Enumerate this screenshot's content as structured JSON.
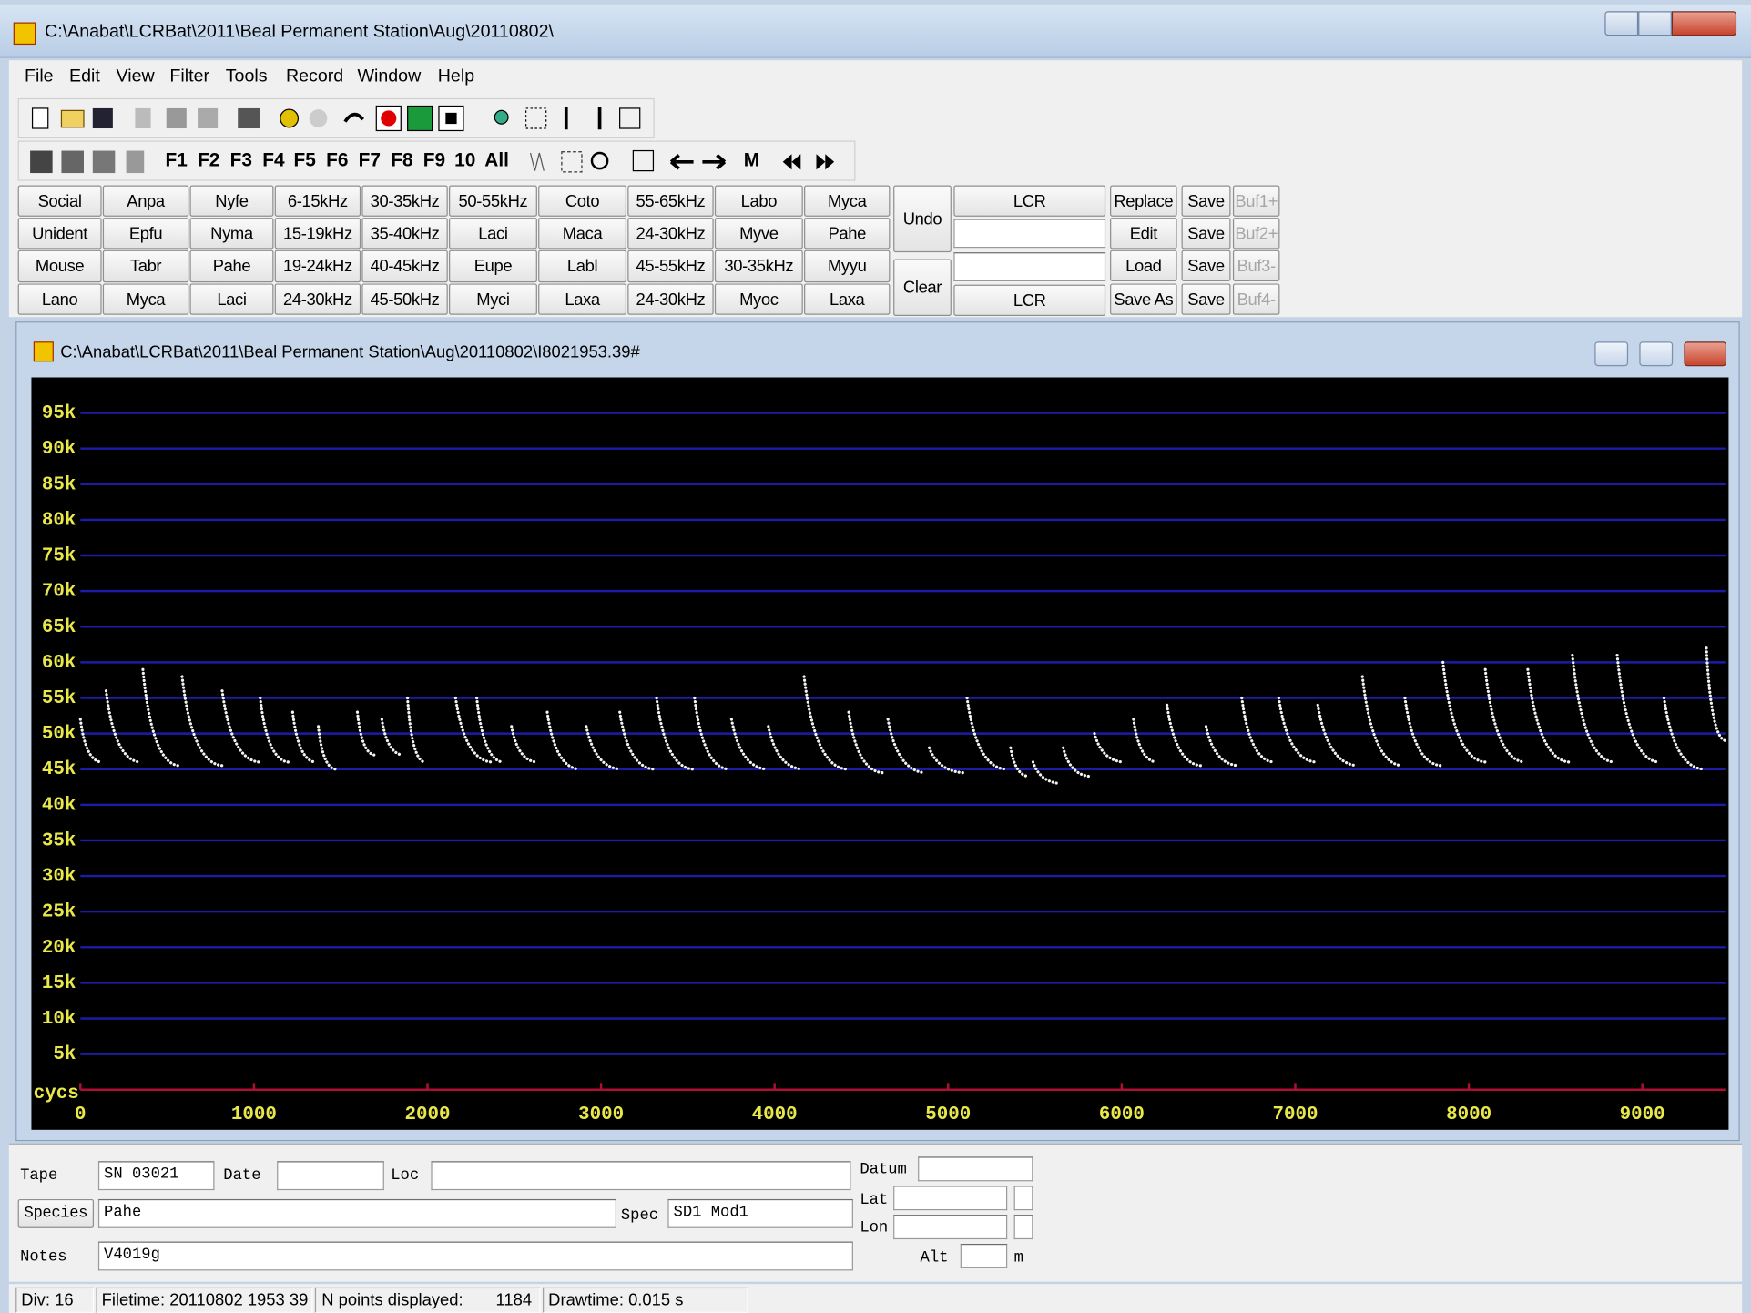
{
  "window_title": "C:\\Anabat\\LCRBat\\2011\\Beal Permanent Station\\Aug\\20110802\\",
  "menu": [
    "File",
    "Edit",
    "View",
    "Filter",
    "Tools",
    "Record",
    "Window",
    "Help"
  ],
  "filter_buttons": [
    "F1",
    "F2",
    "F3",
    "F4",
    "F5",
    "F6",
    "F7",
    "F8",
    "F9",
    "10",
    "All"
  ],
  "mode_button": "M",
  "buttons": {
    "rows": [
      [
        "Social",
        "Anpa",
        "Nyfe",
        "6-15kHz",
        "30-35kHz",
        "50-55kHz",
        "Coto",
        "55-65kHz",
        "Labo",
        "Myca"
      ],
      [
        "Unident",
        "Epfu",
        "Nyma",
        "15-19kHz",
        "35-40kHz",
        "Laci",
        "Maca",
        "24-30kHz",
        "Myve",
        "Pahe"
      ],
      [
        "Mouse",
        "Tabr",
        "Pahe",
        "19-24kHz",
        "40-45kHz",
        "Eupe",
        "Labl",
        "45-55kHz",
        "30-35kHz",
        "Myyu"
      ],
      [
        "Lano",
        "Myca",
        "Laci",
        "24-30kHz",
        "45-50kHz",
        "Myci",
        "Laxa",
        "24-30kHz",
        "Myoc",
        "Laxa"
      ]
    ],
    "undo": "Undo",
    "clear": "Clear",
    "lcr_top": "LCR",
    "lcr_bottom": "LCR",
    "actions": [
      "Replace",
      "Edit",
      "Load",
      "Save As"
    ],
    "save": [
      "Save",
      "Save",
      "Save",
      "Save"
    ],
    "buffers": [
      "Buf1+",
      "Buf2+",
      "Buf3-",
      "Buf4-"
    ]
  },
  "child_title": "C:\\Anabat\\LCRBat\\2011\\Beal Permanent Station\\Aug\\20110802\\I8021953.39#",
  "plot": {
    "y_axis_label": "cycs",
    "ylim": [
      0,
      100000
    ],
    "yticks": [
      {
        "value": 5000,
        "label": "5k"
      },
      {
        "value": 10000,
        "label": "10k"
      },
      {
        "value": 15000,
        "label": "15k"
      },
      {
        "value": 20000,
        "label": "20k"
      },
      {
        "value": 25000,
        "label": "25k"
      },
      {
        "value": 30000,
        "label": "30k"
      },
      {
        "value": 35000,
        "label": "35k"
      },
      {
        "value": 40000,
        "label": "40k"
      },
      {
        "value": 45000,
        "label": "45k"
      },
      {
        "value": 50000,
        "label": "50k"
      },
      {
        "value": 55000,
        "label": "55k"
      },
      {
        "value": 60000,
        "label": "60k"
      },
      {
        "value": 65000,
        "label": "65k"
      },
      {
        "value": 70000,
        "label": "70k"
      },
      {
        "value": 75000,
        "label": "75k"
      },
      {
        "value": 80000,
        "label": "80k"
      },
      {
        "value": 85000,
        "label": "85k"
      },
      {
        "value": 90000,
        "label": "90k"
      },
      {
        "value": 95000,
        "label": "95k"
      }
    ],
    "xlim": [
      0,
      9478
    ],
    "xticks": [
      0,
      1000,
      2000,
      3000,
      4000,
      5000,
      6000,
      7000,
      8000,
      9000
    ],
    "calls": [
      [
        0,
        52000,
        116,
        46000
      ],
      [
        148,
        56000,
        341,
        46000
      ],
      [
        360,
        59000,
        566,
        45500
      ],
      [
        586,
        58000,
        817,
        45500
      ],
      [
        817,
        56000,
        1030,
        46000
      ],
      [
        1036,
        55000,
        1197,
        46000
      ],
      [
        1223,
        53000,
        1351,
        46000
      ],
      [
        1371,
        51000,
        1467,
        45000
      ],
      [
        1596,
        53000,
        1692,
        47000
      ],
      [
        1737,
        52000,
        1853,
        47000
      ],
      [
        1885,
        55000,
        1982,
        46000
      ],
      [
        2162,
        55000,
        2368,
        46000
      ],
      [
        2284,
        55000,
        2432,
        46000
      ],
      [
        2484,
        51000,
        2625,
        46000
      ],
      [
        2690,
        53000,
        2870,
        45000
      ],
      [
        2915,
        51000,
        3108,
        45000
      ],
      [
        3108,
        53000,
        3301,
        45000
      ],
      [
        3320,
        55000,
        3526,
        45000
      ],
      [
        3539,
        55000,
        3732,
        45000
      ],
      [
        3752,
        52000,
        3951,
        45000
      ],
      [
        3964,
        51000,
        4157,
        45000
      ],
      [
        4170,
        58000,
        4414,
        45000
      ],
      [
        4427,
        53000,
        4620,
        44500
      ],
      [
        4653,
        52000,
        4865,
        44500
      ],
      [
        4891,
        48000,
        5084,
        44500
      ],
      [
        5109,
        55000,
        5328,
        45000
      ],
      [
        5360,
        48000,
        5457,
        44000
      ],
      [
        5489,
        46000,
        5637,
        43000
      ],
      [
        5663,
        48000,
        5811,
        44000
      ],
      [
        5843,
        50000,
        6004,
        46000
      ],
      [
        6068,
        52000,
        6197,
        46000
      ],
      [
        6261,
        54000,
        6454,
        45500
      ],
      [
        6486,
        51000,
        6667,
        45500
      ],
      [
        6692,
        55000,
        6873,
        46000
      ],
      [
        6905,
        55000,
        7117,
        46000
      ],
      [
        7130,
        54000,
        7355,
        45500
      ],
      [
        7387,
        58000,
        7613,
        45500
      ],
      [
        7632,
        55000,
        7838,
        45500
      ],
      [
        7851,
        60000,
        8095,
        46000
      ],
      [
        8095,
        59000,
        8320,
        46000
      ],
      [
        8340,
        59000,
        8578,
        46000
      ],
      [
        8597,
        61000,
        8835,
        46000
      ],
      [
        8855,
        61000,
        9093,
        46000
      ],
      [
        9125,
        55000,
        9350,
        45000
      ],
      [
        9369,
        62000,
        9479,
        49000
      ]
    ]
  },
  "form": {
    "tape_label": "Tape",
    "tape": "SN 03021",
    "date_label": "Date",
    "loc_label": "Loc",
    "datum_label": "Datum",
    "species_button": "Species",
    "species": "Pahe",
    "spec_label": "Spec",
    "spec": "SD1 Mod1",
    "lat_label": "Lat",
    "lon_label": "Lon",
    "notes_label": "Notes",
    "notes": "V4019g",
    "alt_label": "Alt",
    "alt_unit": "m"
  },
  "status": {
    "div": "Div: 16",
    "filetime": "Filetime: 20110802 1953 39",
    "npoints_label": "N points displayed:",
    "npoints": 1184,
    "drawtime": "Drawtime: 0.015 s"
  }
}
